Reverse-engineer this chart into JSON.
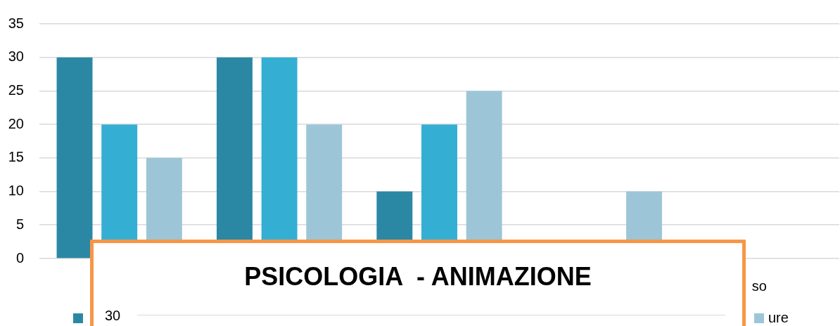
{
  "chart_data": [
    {
      "type": "bar",
      "categories": [
        null,
        null,
        null,
        null,
        "so"
      ],
      "series": [
        {
          "color": "#2b88a5",
          "values": [
            30,
            30,
            10,
            null,
            null
          ]
        },
        {
          "color": "#35aed3",
          "values": [
            20,
            30,
            20,
            null,
            null
          ]
        },
        {
          "name": "ure",
          "color": "#9cc6d8",
          "values": [
            15,
            20,
            25,
            10,
            null
          ]
        }
      ],
      "ylim": [
        0,
        35
      ],
      "yticks": [
        0,
        5,
        10,
        15,
        20,
        25,
        30,
        35
      ],
      "grid": "y",
      "legend": "bottom"
    },
    {
      "type": "other",
      "title": "PSICOLOGIA  - ANIMAZIONE",
      "annotations": [
        "30"
      ]
    }
  ]
}
